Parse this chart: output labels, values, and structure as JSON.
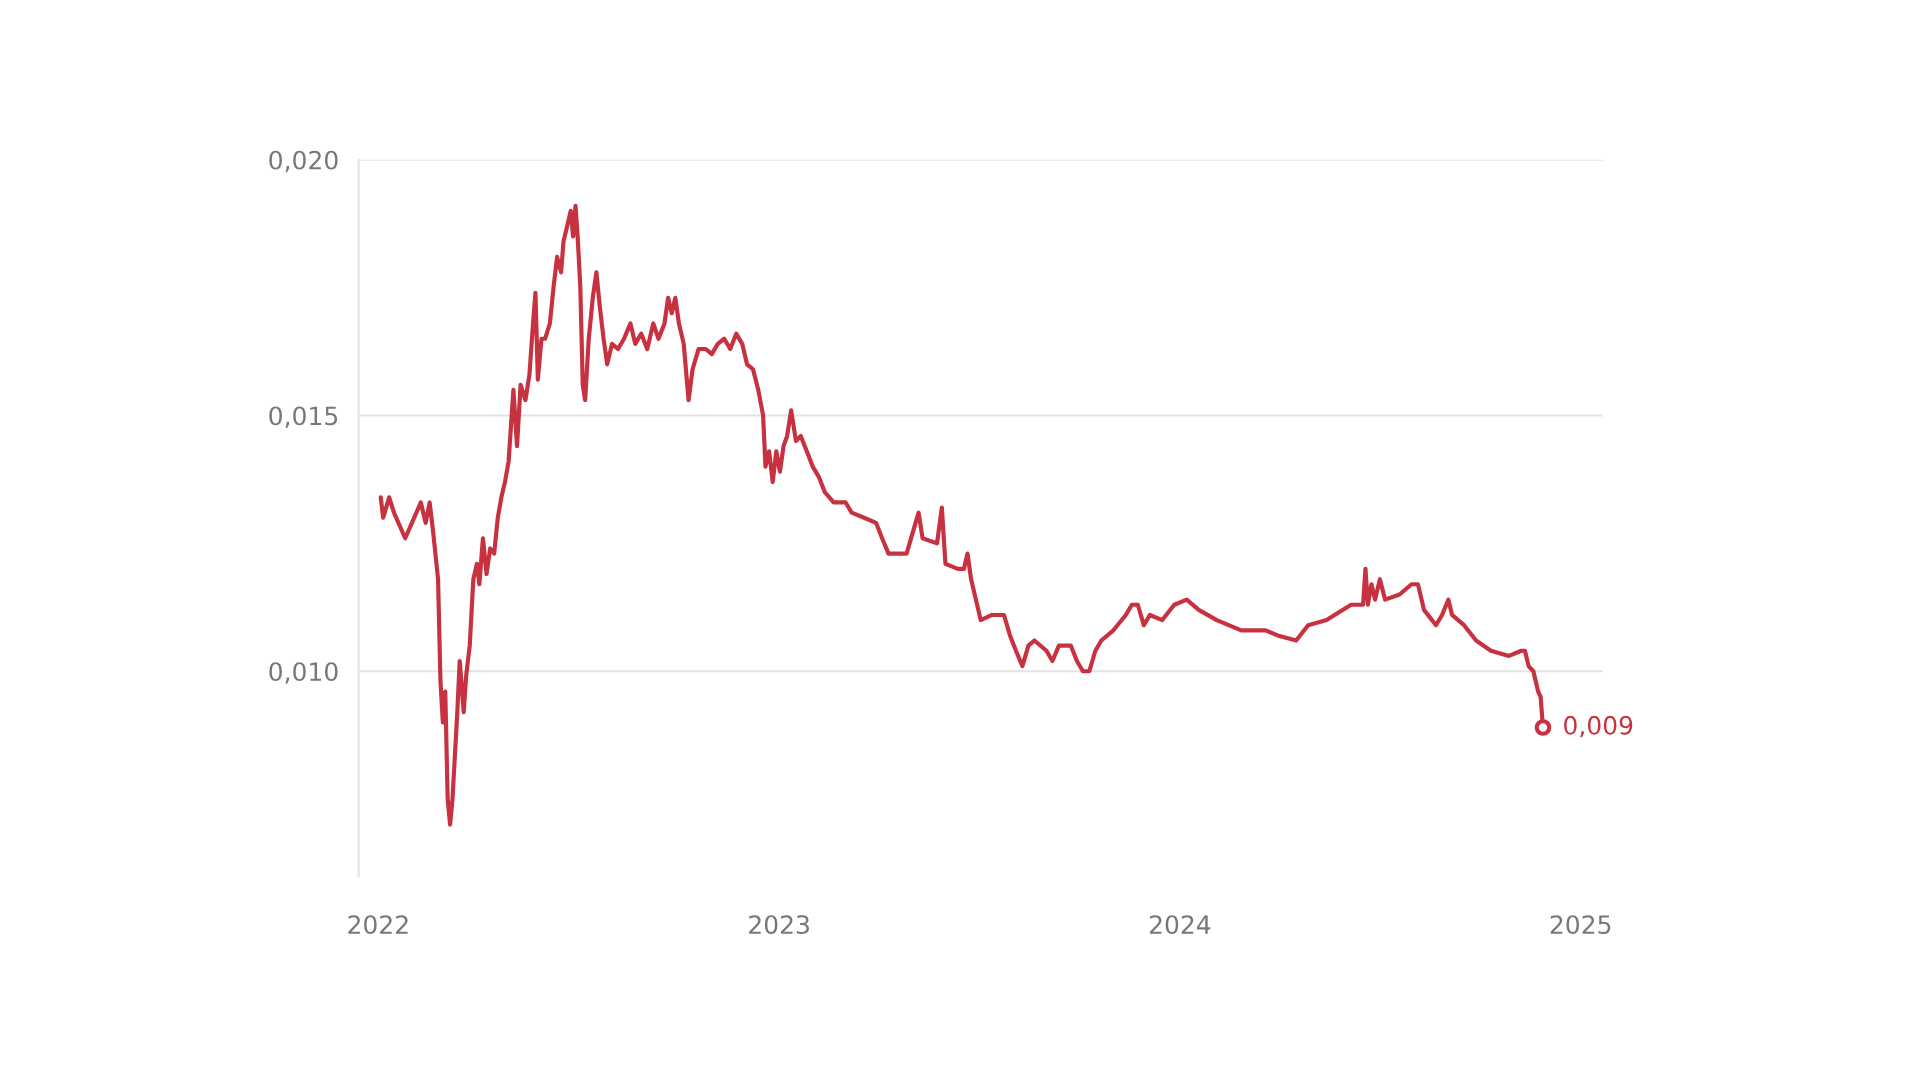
{
  "chart_data": {
    "type": "line",
    "xlim": [
      2021.951,
      2025.055
    ],
    "xticks": [
      2022,
      2023,
      2024,
      2025
    ],
    "ylim": [
      0.006,
      0.02
    ],
    "yticks": [
      {
        "value": 0.01,
        "label": "0,010"
      },
      {
        "value": 0.015,
        "label": "0,015"
      },
      {
        "value": 0.02,
        "label": "0,020"
      }
    ],
    "grid": "y",
    "legend": false,
    "marker": "none",
    "line_style": "solid",
    "series": [
      {
        "color": "#c8313f",
        "x": [
          2022.006,
          2022.012,
          2022.027,
          2022.039,
          2022.067,
          2022.106,
          2022.118,
          2022.128,
          2022.137,
          2022.149,
          2022.155,
          2022.161,
          2022.167,
          2022.173,
          2022.179,
          2022.185,
          2022.197,
          2022.203,
          2022.213,
          2022.219,
          2022.228,
          2022.237,
          2022.246,
          2022.252,
          2022.261,
          2022.27,
          2022.279,
          2022.289,
          2022.298,
          2022.307,
          2022.316,
          2022.325,
          2022.337,
          2022.346,
          2022.355,
          2022.367,
          2022.377,
          2022.386,
          2022.392,
          2022.398,
          2022.407,
          2022.416,
          2022.428,
          2022.437,
          2022.446,
          2022.456,
          2022.462,
          2022.471,
          2022.48,
          2022.486,
          2022.492,
          2022.498,
          2022.504,
          2022.51,
          2022.516,
          2022.525,
          2022.535,
          2022.544,
          2022.553,
          2022.562,
          2022.571,
          2022.583,
          2022.598,
          2022.613,
          2022.629,
          2022.641,
          2022.656,
          2022.671,
          2022.686,
          2022.699,
          2022.714,
          2022.723,
          2022.732,
          2022.741,
          2022.75,
          2022.762,
          2022.774,
          2022.784,
          2022.799,
          2022.817,
          2022.832,
          2022.847,
          2022.863,
          2022.878,
          2022.893,
          2022.908,
          2022.92,
          2022.935,
          2022.948,
          2022.96,
          2022.966,
          2022.975,
          2022.984,
          2022.993,
          2023.002,
          2023.011,
          2023.02,
          2023.03,
          2023.042,
          2023.054,
          2023.069,
          2023.084,
          2023.099,
          2023.114,
          2023.136,
          2023.166,
          2023.181,
          2023.212,
          2023.242,
          2023.257,
          2023.273,
          2023.303,
          2023.318,
          2023.333,
          2023.348,
          2023.358,
          2023.394,
          2023.406,
          2023.415,
          2023.446,
          2023.461,
          2023.47,
          2023.479,
          2023.491,
          2023.503,
          2023.531,
          2023.561,
          2023.576,
          2023.591,
          2023.607,
          2023.622,
          2023.637,
          2023.667,
          2023.682,
          2023.698,
          2023.728,
          2023.743,
          2023.758,
          2023.774,
          2023.789,
          2023.804,
          2023.834,
          2023.865,
          2023.88,
          2023.895,
          2023.91,
          2023.925,
          2023.956,
          2023.986,
          2024.017,
          2024.047,
          2024.092,
          2024.153,
          2024.214,
          2024.244,
          2024.29,
          2024.32,
          2024.366,
          2024.427,
          2024.457,
          2024.463,
          2024.469,
          2024.478,
          2024.487,
          2024.499,
          2024.512,
          2024.548,
          2024.578,
          2024.594,
          2024.609,
          2024.639,
          2024.654,
          2024.67,
          2024.679,
          2024.709,
          2024.739,
          2024.776,
          2024.821,
          2024.852,
          2024.861,
          2024.87,
          2024.882,
          2024.894,
          2024.9,
          2024.906
        ],
        "values": [
          0.0134,
          0.013,
          0.0134,
          0.0131,
          0.0126,
          0.0133,
          0.0129,
          0.0133,
          0.0127,
          0.0118,
          0.0098,
          0.009,
          0.0096,
          0.0075,
          0.007,
          0.0075,
          0.0092,
          0.0102,
          0.0092,
          0.0099,
          0.0105,
          0.0118,
          0.0121,
          0.0117,
          0.0126,
          0.0119,
          0.0124,
          0.0123,
          0.013,
          0.0134,
          0.0137,
          0.0141,
          0.0155,
          0.0144,
          0.0156,
          0.0153,
          0.0158,
          0.0168,
          0.0174,
          0.0157,
          0.0165,
          0.0165,
          0.0168,
          0.0175,
          0.0181,
          0.0178,
          0.0184,
          0.0187,
          0.019,
          0.0185,
          0.0191,
          0.0184,
          0.0175,
          0.0156,
          0.0153,
          0.0165,
          0.0173,
          0.0178,
          0.0171,
          0.0165,
          0.016,
          0.0164,
          0.0163,
          0.0165,
          0.0168,
          0.0164,
          0.0166,
          0.0163,
          0.0168,
          0.0165,
          0.0168,
          0.0173,
          0.017,
          0.0173,
          0.0168,
          0.0164,
          0.0153,
          0.0159,
          0.0163,
          0.0163,
          0.0162,
          0.0164,
          0.0165,
          0.0163,
          0.0166,
          0.0164,
          0.016,
          0.0159,
          0.0155,
          0.015,
          0.014,
          0.0143,
          0.0137,
          0.0143,
          0.0139,
          0.0144,
          0.0146,
          0.0151,
          0.0145,
          0.0146,
          0.0143,
          0.014,
          0.0138,
          0.0135,
          0.0133,
          0.0133,
          0.0131,
          0.013,
          0.0129,
          0.0126,
          0.0123,
          0.0123,
          0.0123,
          0.0127,
          0.0131,
          0.0126,
          0.0125,
          0.0132,
          0.0121,
          0.012,
          0.012,
          0.0123,
          0.0118,
          0.0114,
          0.011,
          0.0111,
          0.0111,
          0.0107,
          0.0104,
          0.0101,
          0.0105,
          0.0106,
          0.0104,
          0.0102,
          0.0105,
          0.0105,
          0.0102,
          0.01,
          0.01,
          0.0104,
          0.0106,
          0.0108,
          0.0111,
          0.0113,
          0.0113,
          0.0109,
          0.0111,
          0.011,
          0.0113,
          0.0114,
          0.0112,
          0.011,
          0.0108,
          0.0108,
          0.0107,
          0.0106,
          0.0109,
          0.011,
          0.0113,
          0.0113,
          0.012,
          0.0113,
          0.0117,
          0.0114,
          0.0118,
          0.0114,
          0.0115,
          0.0117,
          0.0117,
          0.0112,
          0.0109,
          0.0111,
          0.0114,
          0.0111,
          0.0109,
          0.0106,
          0.0104,
          0.0103,
          0.0104,
          0.0104,
          0.0101,
          0.01,
          0.0096,
          0.0095,
          0.0089
        ],
        "value_labels": [
          null,
          null,
          null,
          null,
          null,
          null,
          null,
          null,
          null,
          null,
          null,
          null,
          null,
          null,
          null,
          null,
          null,
          null,
          null,
          null,
          null,
          null,
          null,
          null,
          null,
          null,
          null,
          null,
          null,
          null,
          null,
          null,
          null,
          null,
          null,
          null,
          null,
          null,
          null,
          null,
          null,
          null,
          null,
          null,
          null,
          null,
          null,
          null,
          null,
          null,
          null,
          null,
          null,
          null,
          null,
          null,
          null,
          null,
          null,
          null,
          null,
          null,
          null,
          null,
          null,
          null,
          null,
          null,
          null,
          null,
          null,
          null,
          null,
          null,
          null,
          null,
          null,
          null,
          null,
          null,
          null,
          null,
          null,
          null,
          null,
          null,
          null,
          null,
          null,
          null,
          null,
          null,
          null,
          null,
          null,
          null,
          null,
          null,
          null,
          null,
          null,
          null,
          null,
          null,
          null,
          null,
          null,
          null,
          null,
          null,
          null,
          null,
          null,
          null,
          null,
          null,
          null,
          null,
          null,
          null,
          null,
          null,
          null,
          null,
          null,
          null,
          null,
          null,
          null,
          null,
          null,
          null,
          null,
          null,
          null,
          null,
          null,
          null,
          null,
          null,
          null,
          null,
          null,
          null,
          null,
          null,
          null,
          null,
          null,
          null,
          null,
          null,
          null,
          null,
          null,
          null,
          null,
          null,
          null,
          null,
          null,
          null,
          null,
          null,
          null,
          null,
          null,
          null,
          null,
          null,
          null,
          null,
          null,
          null,
          null,
          null,
          null,
          null,
          null,
          null,
          null,
          null,
          null,
          null,
          "0,009"
        ]
      }
    ]
  }
}
